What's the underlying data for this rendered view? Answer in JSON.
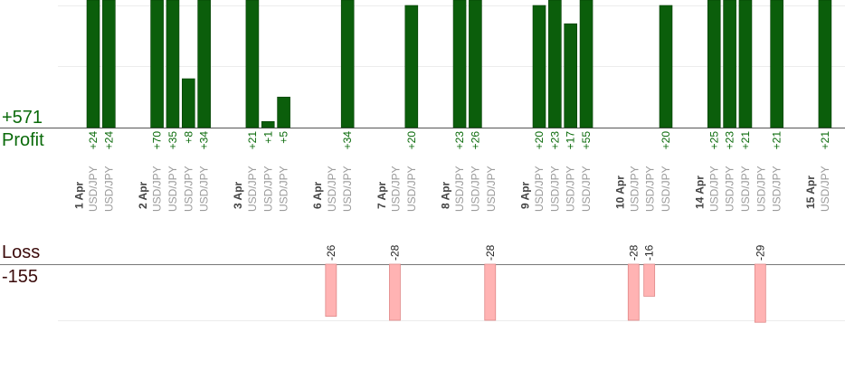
{
  "summary": {
    "profit_total": "+571",
    "profit_label": "Profit",
    "loss_label": "Loss",
    "loss_total": "-155"
  },
  "colors": {
    "profit_bar": "#0b5e0b",
    "profit_text": "#0a6a0a",
    "loss_bar": "#ffb3b3",
    "loss_bar_edge": "#e08888",
    "loss_text": "#3a0a0a",
    "date_text": "#444444",
    "pair_text": "#9a9a9a"
  },
  "chart_data": {
    "type": "bar",
    "symbol": "USD/JPY",
    "days": [
      {
        "date": "1 Apr",
        "trades": [
          24,
          24
        ]
      },
      {
        "date": "2 Apr",
        "trades": [
          70,
          35,
          8,
          34
        ]
      },
      {
        "date": "3 Apr",
        "trades": [
          21,
          1,
          5
        ]
      },
      {
        "date": "6 Apr",
        "trades": [
          -26,
          34
        ]
      },
      {
        "date": "7 Apr",
        "trades": [
          -28,
          20
        ]
      },
      {
        "date": "8 Apr",
        "trades": [
          23,
          26,
          -28
        ]
      },
      {
        "date": "9 Apr",
        "trades": [
          20,
          23,
          17,
          55
        ]
      },
      {
        "date": "10 Apr",
        "trades": [
          -28,
          -16,
          20
        ]
      },
      {
        "date": "14 Apr",
        "trades": [
          25,
          23,
          21,
          -29,
          21
        ]
      },
      {
        "date": "15 Apr",
        "trades": [
          21
        ]
      }
    ],
    "profit_axis_visible_max": 20,
    "loss_axis_visible_max": 28
  }
}
